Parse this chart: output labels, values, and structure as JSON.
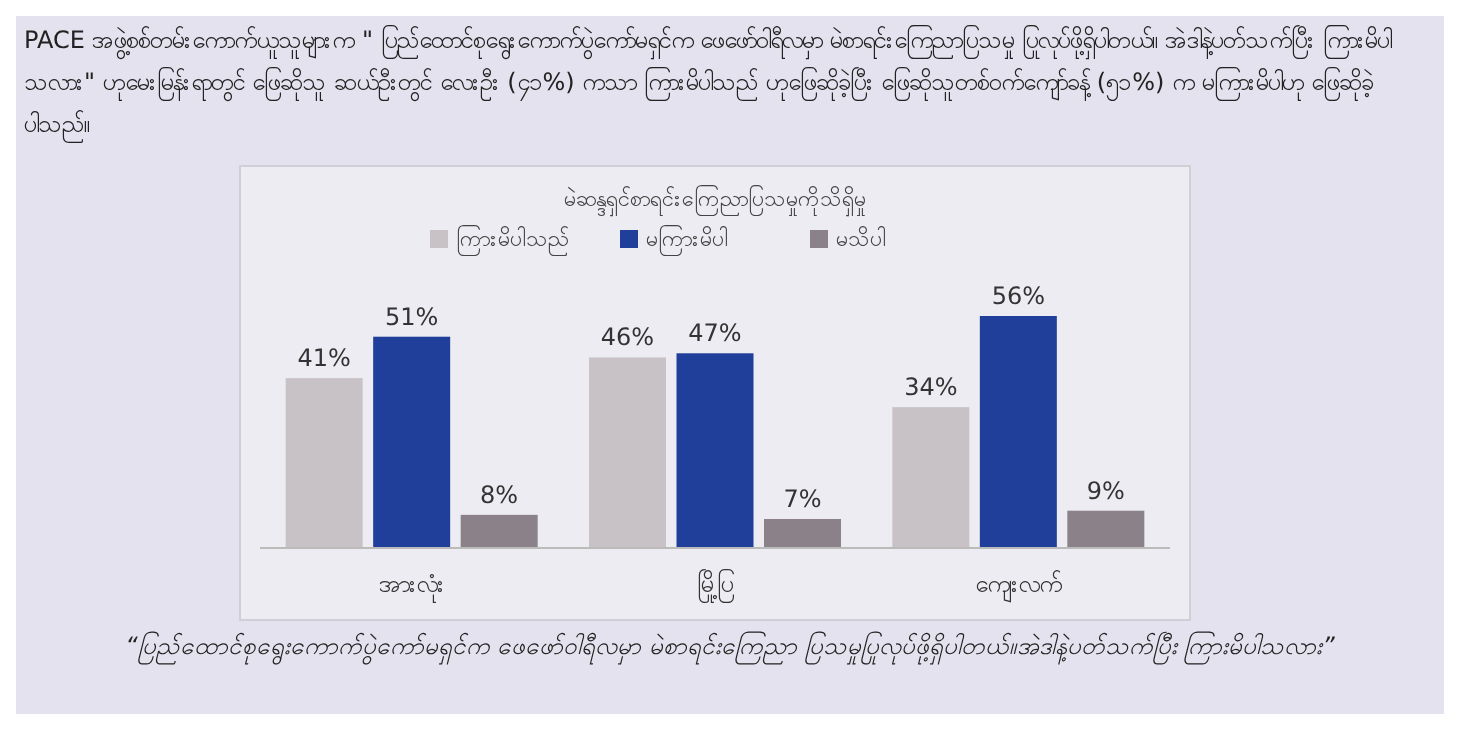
{
  "chart_data": {
    "type": "bar",
    "title": "မဲဆန္ဒရှင်စာရင်းကြေညာပြသမှုကိုသိရှိမှု",
    "categories": [
      "အားလုံး",
      "မြို့ပြ",
      "ကျေးလက်"
    ],
    "series": [
      {
        "name": "ကြားမိပါသည်",
        "color": "#c8c2c6",
        "values": [
          41,
          46,
          34
        ],
        "value_labels": [
          "41%",
          "46%",
          "34%"
        ]
      },
      {
        "name": "မကြားမိပါ",
        "color": "#1f3f9a",
        "values": [
          51,
          47,
          56
        ],
        "value_labels": [
          "51%",
          "47%",
          "56%"
        ]
      },
      {
        "name": "မသိပါ",
        "color": "#8a8288",
        "values": [
          8,
          7,
          9
        ],
        "value_labels": [
          "8%",
          "7%",
          "9%"
        ]
      }
    ],
    "legend": "top",
    "grid": false,
    "annotations": [
      "PACE အဖွဲ့စစ်တမ်းကောက်ယူသူများက \" ပြည်ထောင်စုရွေးကောက်ပွဲကော်မရှင်က ဖေဖော်ဝါရီလမှာ မဲစာရင်းကြေညာပြသမှု ပြုလုပ်ဖို့ရှိပါတယ်။ အဲဒါနဲ့ပတ်သက်ပြီး ကြားမိပါသလား\" ဟုမေးမြန်းရာတွင် ဖြေဆိုသူ ဆယ်ဦးတွင် လေးဦး (၄၁%) ကသာ ကြားမိပါသည် ဟုဖြေဆိုခဲ့ပြီး ဖြေဆိုသူတစ်ဝက်ကျော်ခန့် (၅၁%) က မကြားမိပါဟု ဖြေဆိုခဲ့ပါသည်။",
      "“ပြည်ထောင်စုရွေးကောက်ပွဲကော်မရှင်က ဖေဖော်ဝါရီလမှာ မဲစာရင်းကြေညာ ပြသမှုပြုလုပ်ဖို့ရှိပါတယ်။အဲဒါနဲ့ပတ်သက်ပြီး ကြားမိပါသလား”"
    ]
  }
}
